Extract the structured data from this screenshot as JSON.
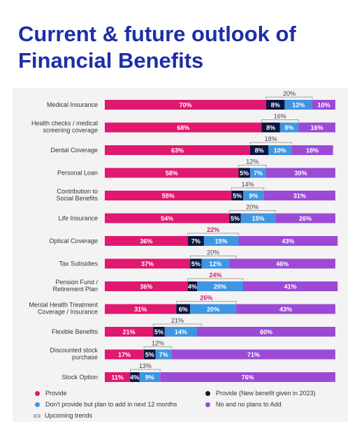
{
  "title": "Current & future outlook of Financial Benefits",
  "colors": {
    "provide": "#e0186f",
    "provide_new": "#0e1440",
    "plan": "#3f95e0",
    "no_plans": "#9c4ad6"
  },
  "legend": {
    "provide": "Provide",
    "provide_new": "Provide (New benefit given in 2023)",
    "plan": "Don't provide but plan to add in next 12 months",
    "no_plans": "No and no plans to Add",
    "trends": "Upcoming trends"
  },
  "chart_data": {
    "type": "bar",
    "orientation": "horizontal",
    "stacked": true,
    "xlim": [
      0,
      100
    ],
    "categories": [
      "Medical Insurance",
      "Health checks / medical screening coverage",
      "Dental Coverage",
      "Personal Loan",
      "Contribution to Social Benefits",
      "Life Insurance",
      "Optical Coverage",
      "Tax Subsidies",
      "Pension Fund / Retirement Plan",
      "Mental Health Treatment Coverage / Insurance",
      "Flexible Benefits",
      "Discounted stock purchase",
      "Stock Option"
    ],
    "category_lines": [
      [
        "Medical Insurance"
      ],
      [
        "Health checks / medical",
        "screening coverage"
      ],
      [
        "Dental Coverage"
      ],
      [
        "Personal Loan"
      ],
      [
        "Contribution to",
        "Social Benefits"
      ],
      [
        "Life Insurance"
      ],
      [
        "Optical Coverage"
      ],
      [
        "Tax Subsidies"
      ],
      [
        "Pension Fund /",
        "Retirement Plan"
      ],
      [
        "Mental Health Treatment",
        "Coverage / Insurance"
      ],
      [
        "Flexible Benefits"
      ],
      [
        "Discounted stock",
        "purchase"
      ],
      [
        "Stock Option"
      ]
    ],
    "series": [
      {
        "name": "Provide",
        "values": [
          70,
          68,
          63,
          58,
          55,
          54,
          36,
          37,
          36,
          31,
          21,
          17,
          11
        ]
      },
      {
        "name": "Provide (New benefit given in 2023)",
        "values": [
          8,
          8,
          8,
          5,
          5,
          5,
          7,
          5,
          4,
          6,
          5,
          5,
          4
        ]
      },
      {
        "name": "Don't provide but plan to add in next 12 months",
        "values": [
          12,
          8,
          10,
          7,
          9,
          15,
          15,
          12,
          20,
          20,
          14,
          7,
          9
        ]
      },
      {
        "name": "No and no plans to Add",
        "values": [
          10,
          16,
          18,
          30,
          31,
          26,
          43,
          46,
          41,
          43,
          60,
          71,
          76
        ]
      }
    ],
    "upcoming_trends": {
      "values": [
        20,
        16,
        18,
        12,
        14,
        20,
        22,
        20,
        24,
        26,
        21,
        12,
        13
      ],
      "highlighted": [
        false,
        false,
        false,
        false,
        false,
        false,
        true,
        false,
        true,
        true,
        false,
        false,
        false
      ]
    }
  }
}
